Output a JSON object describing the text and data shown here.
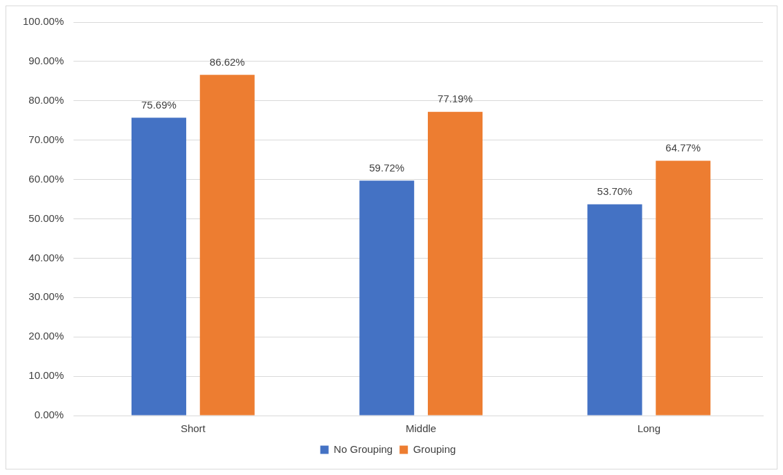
{
  "chart_data": {
    "type": "bar",
    "categories": [
      "Short",
      "Middle",
      "Long"
    ],
    "series": [
      {
        "name": "No Grouping",
        "color": "#4472c4",
        "values": [
          75.69,
          59.72,
          53.7
        ],
        "value_labels": [
          "75.69%",
          "59.72%",
          "53.70%"
        ]
      },
      {
        "name": "Grouping",
        "color": "#ed7d31",
        "values": [
          86.62,
          77.19,
          64.77
        ],
        "value_labels": [
          "86.62%",
          "77.19%",
          "64.77%"
        ]
      }
    ],
    "ylim": [
      0,
      100
    ],
    "yticks": [
      {
        "value": 0,
        "label": "0.00%"
      },
      {
        "value": 10,
        "label": "10.00%"
      },
      {
        "value": 20,
        "label": "20.00%"
      },
      {
        "value": 30,
        "label": "30.00%"
      },
      {
        "value": 40,
        "label": "40.00%"
      },
      {
        "value": 50,
        "label": "50.00%"
      },
      {
        "value": 60,
        "label": "60.00%"
      },
      {
        "value": 70,
        "label": "70.00%"
      },
      {
        "value": 80,
        "label": "80.00%"
      },
      {
        "value": 90,
        "label": "90.00%"
      },
      {
        "value": 100,
        "label": "100.00%"
      }
    ],
    "grid": "y",
    "legend": "bottom"
  }
}
